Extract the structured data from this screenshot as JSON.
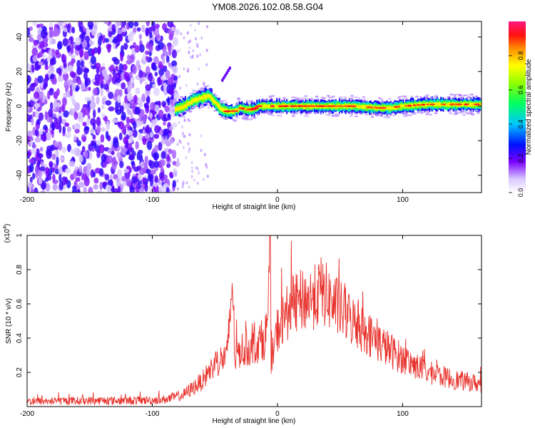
{
  "page": {
    "title": "YM08.2026.102.08.58.G04"
  },
  "chart_data": [
    {
      "type": "heatmap",
      "title": "YM08.2026.102.08.58.G04",
      "xlabel": "Height of straight line (km)",
      "ylabel": "Frequency (Hz)",
      "xlim": [
        -200,
        163
      ],
      "ylim": [
        -50,
        49
      ],
      "xticks": [
        -200,
        -100,
        0,
        100
      ],
      "yticks": [
        -40,
        -20,
        0,
        20,
        40
      ],
      "colorbar": {
        "label": "Normalized spectral amplitude",
        "range": [
          0,
          1
        ],
        "ticks": [
          0.0,
          0.2,
          0.4,
          0.6,
          0.8
        ]
      },
      "noise_region_x": [
        -200,
        -80
      ],
      "ridge": {
        "description_points_x": [
          -82,
          -75,
          -68,
          -60,
          -55,
          -50,
          -45,
          -40,
          -35,
          -30,
          -25,
          -20,
          -15,
          -10,
          0,
          20,
          40,
          60,
          80,
          90,
          100,
          120,
          163
        ],
        "description_points_y": [
          -2,
          0,
          3,
          5,
          6,
          2,
          -2,
          -3,
          -3,
          -1,
          -2,
          -2,
          0,
          0,
          0,
          0,
          0,
          0,
          -1,
          -1,
          0,
          1,
          1
        ]
      },
      "side_feature": {
        "x": [
          -44,
          -38
        ],
        "y": [
          15,
          22
        ]
      }
    },
    {
      "type": "line",
      "xlabel": "Height of straight line (km)",
      "ylabel": "SNR (10 * v/v)",
      "multiplier_label": "(x10",
      "multiplier_exp": "4",
      "xlim": [
        -200,
        163
      ],
      "ylim": [
        0,
        1.0
      ],
      "xticks": [
        -200,
        -100,
        0,
        100
      ],
      "yticks": [
        0.2,
        0.4,
        0.6,
        0.8,
        1.0
      ],
      "color": "#e8302a",
      "series_keypoints": {
        "x": [
          -200,
          -150,
          -120,
          -90,
          -75,
          -60,
          -50,
          -40,
          -36,
          -34,
          -30,
          -20,
          -10,
          -7,
          -6,
          -5,
          0,
          10,
          20,
          30,
          35,
          45,
          60,
          80,
          100,
          120,
          140,
          163
        ],
        "y": [
          0.03,
          0.035,
          0.035,
          0.04,
          0.07,
          0.15,
          0.25,
          0.3,
          0.75,
          0.28,
          0.33,
          0.35,
          0.4,
          0.55,
          1.0,
          0.25,
          0.45,
          0.58,
          0.62,
          0.64,
          0.68,
          0.6,
          0.5,
          0.38,
          0.28,
          0.2,
          0.16,
          0.13
        ]
      }
    }
  ]
}
